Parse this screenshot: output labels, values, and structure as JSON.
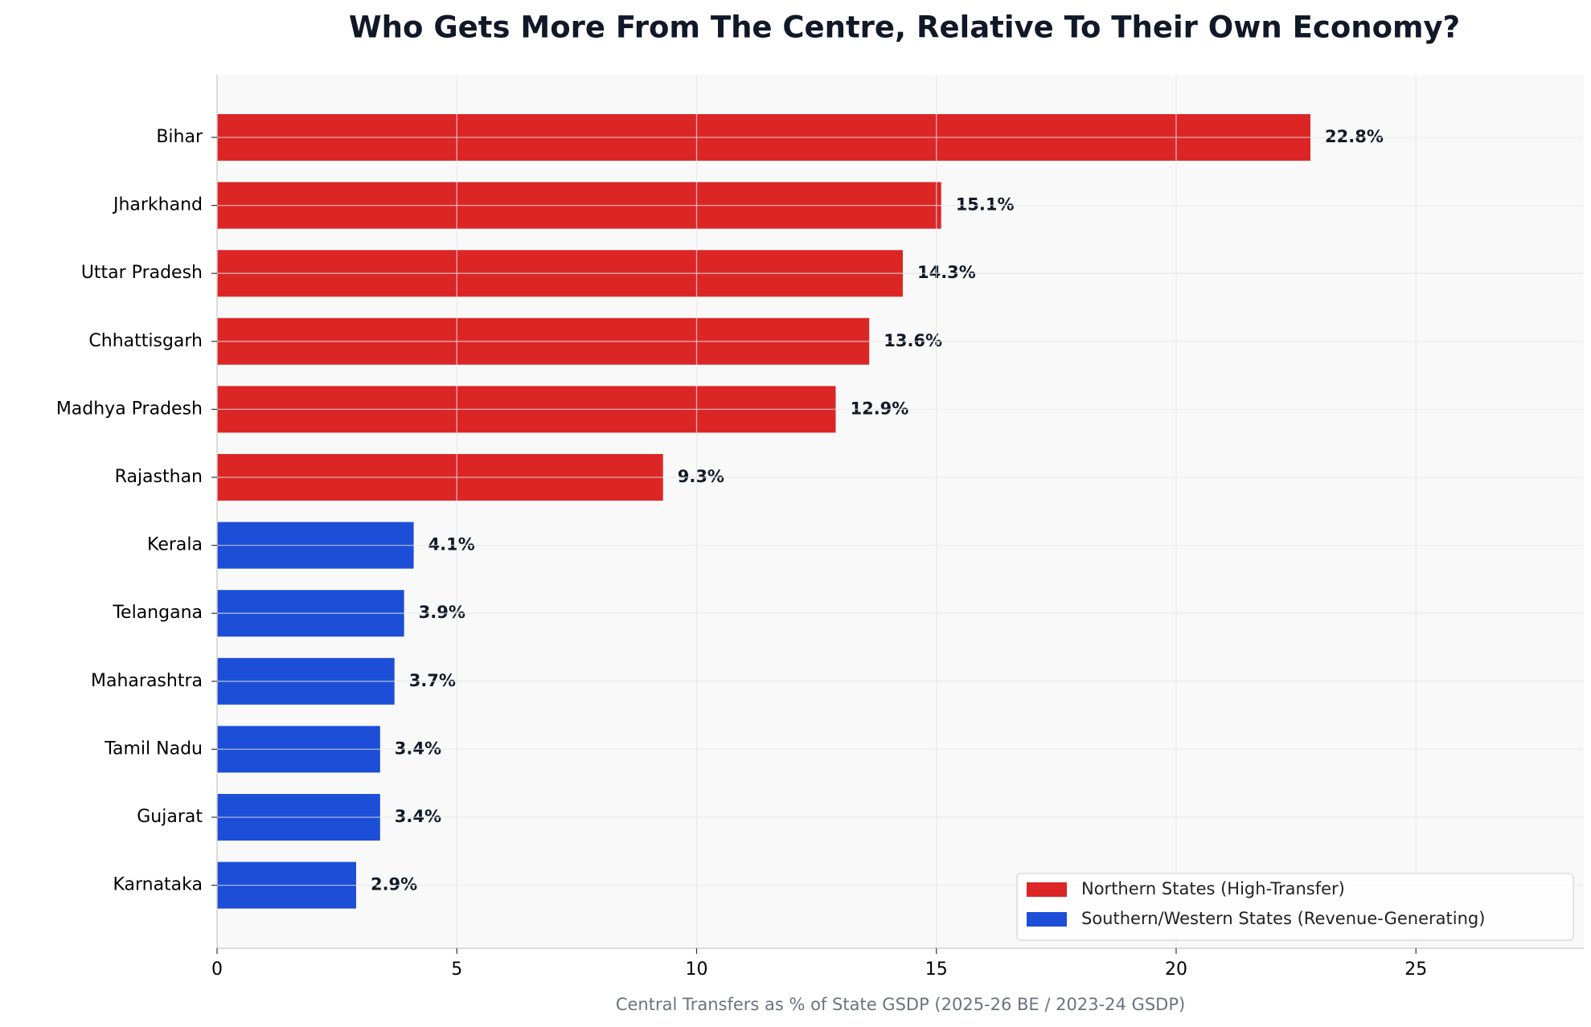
{
  "chart_data": {
    "type": "barh",
    "title": "Who Gets More From The Centre, Relative To Their Own Economy?",
    "x_label": "Central Transfers as % of State GSDP (2025-26 BE / 2023-24 GSDP)",
    "categories": [
      "Bihar",
      "Jharkhand",
      "Uttar Pradesh",
      "Chhattisgarh",
      "Madhya Pradesh",
      "Rajasthan",
      "Kerala",
      "Telangana",
      "Maharashtra",
      "Tamil Nadu",
      "Gujarat",
      "Karnataka"
    ],
    "series": [
      {
        "name": "Northern States (High-Transfer)",
        "color": "#dc2626",
        "values": [
          22.8,
          15.1,
          14.3,
          13.6,
          12.9,
          9.3,
          null,
          null,
          null,
          null,
          null,
          null
        ],
        "value_labels": [
          "22.8%",
          "15.1%",
          "14.3%",
          "13.6%",
          "12.9%",
          "9.3%",
          null,
          null,
          null,
          null,
          null,
          null
        ]
      },
      {
        "name": "Southern/Western States (Revenue-Generating)",
        "color": "#1d4ed8",
        "values": [
          null,
          null,
          null,
          null,
          null,
          null,
          4.1,
          3.9,
          3.7,
          3.4,
          3.4,
          2.9
        ],
        "value_labels": [
          null,
          null,
          null,
          null,
          null,
          null,
          "4.1%",
          "3.9%",
          "3.7%",
          "3.4%",
          "3.4%",
          "2.9%"
        ]
      }
    ],
    "xlim": [
      0,
      28.5
    ],
    "xticks": [
      0,
      5,
      10,
      15,
      20,
      25
    ],
    "grid": true,
    "legend": "lower right"
  }
}
